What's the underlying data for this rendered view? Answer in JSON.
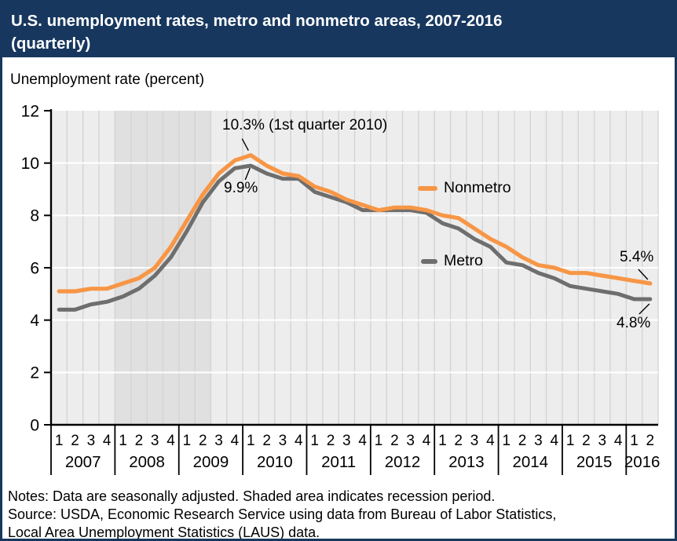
{
  "header": {
    "title": "U.S. unemployment rates, metro and nonmetro areas, 2007-2016 (quarterly)"
  },
  "chart_data": {
    "type": "line",
    "title": "U.S. unemployment rates, metro and nonmetro areas, 2007-2016 (quarterly)",
    "ylabel": "Unemployment rate (percent)",
    "xlabel": "",
    "ylim": [
      0,
      12
    ],
    "yticks": [
      0,
      2,
      4,
      6,
      8,
      10,
      12
    ],
    "grid": {
      "horizontal": true,
      "vertical": true
    },
    "quarters": [
      "2007 Q1",
      "2007 Q2",
      "2007 Q3",
      "2007 Q4",
      "2008 Q1",
      "2008 Q2",
      "2008 Q3",
      "2008 Q4",
      "2009 Q1",
      "2009 Q2",
      "2009 Q3",
      "2009 Q4",
      "2010 Q1",
      "2010 Q2",
      "2010 Q3",
      "2010 Q4",
      "2011 Q1",
      "2011 Q2",
      "2011 Q3",
      "2011 Q4",
      "2012 Q1",
      "2012 Q2",
      "2012 Q3",
      "2012 Q4",
      "2013 Q1",
      "2013 Q2",
      "2013 Q3",
      "2013 Q4",
      "2014 Q1",
      "2014 Q2",
      "2014 Q3",
      "2014 Q4",
      "2015 Q1",
      "2015 Q2",
      "2015 Q3",
      "2015 Q4",
      "2016 Q1",
      "2016 Q2"
    ],
    "x_axis": {
      "year_groups": [
        {
          "year": "2007",
          "quarters": [
            "1",
            "2",
            "3",
            "4"
          ]
        },
        {
          "year": "2008",
          "quarters": [
            "1",
            "2",
            "3",
            "4"
          ]
        },
        {
          "year": "2009",
          "quarters": [
            "1",
            "2",
            "3",
            "4"
          ]
        },
        {
          "year": "2010",
          "quarters": [
            "1",
            "2",
            "3",
            "4"
          ]
        },
        {
          "year": "2011",
          "quarters": [
            "1",
            "2",
            "3",
            "4"
          ]
        },
        {
          "year": "2012",
          "quarters": [
            "1",
            "2",
            "3",
            "4"
          ]
        },
        {
          "year": "2013",
          "quarters": [
            "1",
            "2",
            "3",
            "4"
          ]
        },
        {
          "year": "2014",
          "quarters": [
            "1",
            "2",
            "3",
            "4"
          ]
        },
        {
          "year": "2015",
          "quarters": [
            "1",
            "2",
            "3",
            "4"
          ]
        },
        {
          "year": "2016",
          "quarters": [
            "1",
            "2"
          ]
        }
      ]
    },
    "recession_band": {
      "label": "recession period",
      "from": "2008 Q1",
      "to": "2009 Q2",
      "start_quarter_index": 4,
      "end_quarter_index": 10
    },
    "series": [
      {
        "name": "Nonmetro",
        "color": "#F79646",
        "values": [
          5.1,
          5.1,
          5.2,
          5.2,
          5.4,
          5.6,
          6.0,
          6.8,
          7.8,
          8.8,
          9.6,
          10.1,
          10.3,
          9.9,
          9.6,
          9.5,
          9.1,
          8.9,
          8.6,
          8.4,
          8.2,
          8.3,
          8.3,
          8.2,
          8.0,
          7.9,
          7.5,
          7.1,
          6.8,
          6.4,
          6.1,
          6.0,
          5.8,
          5.8,
          5.7,
          5.6,
          5.5,
          5.4
        ]
      },
      {
        "name": "Metro",
        "color": "#6E6E6E",
        "values": [
          4.4,
          4.4,
          4.6,
          4.7,
          4.9,
          5.2,
          5.7,
          6.4,
          7.4,
          8.5,
          9.3,
          9.8,
          9.9,
          9.6,
          9.4,
          9.4,
          8.9,
          8.7,
          8.5,
          8.2,
          8.2,
          8.2,
          8.2,
          8.1,
          7.7,
          7.5,
          7.1,
          6.8,
          6.2,
          6.1,
          5.8,
          5.6,
          5.3,
          5.2,
          5.1,
          5.0,
          4.8,
          4.8
        ]
      }
    ],
    "legend": {
      "position": "middle-right"
    },
    "annotations": [
      {
        "label": "10.3% (1st quarter 2010)",
        "series": "Nonmetro",
        "quarter": "2010 Q1",
        "value": 10.3
      },
      {
        "label": "9.9%",
        "series": "Metro",
        "quarter": "2010 Q1",
        "value": 9.9
      },
      {
        "label": "5.4%",
        "series": "Nonmetro",
        "quarter": "2016 Q2",
        "value": 5.4
      },
      {
        "label": "4.8%",
        "series": "Metro",
        "quarter": "2016 Q2",
        "value": 4.8
      }
    ]
  },
  "notes": {
    "lines": [
      "Notes: Data are seasonally adjusted. Shaded area indicates recession period.",
      "Source: USDA, Economic Research Service using data from Bureau of Labor Statistics,",
      "Local Area Unemployment Statistics (LAUS) data."
    ]
  },
  "colors": {
    "title_bar": "#17375E",
    "border": "#17375E",
    "plot_background": "#EDEDED",
    "recession_band": "#E0E0E0",
    "vertical_gridline": "#D4D4D4",
    "horizontal_gridline": "#FFFFFF",
    "nonmetro": "#F79646",
    "metro": "#6E6E6E"
  }
}
